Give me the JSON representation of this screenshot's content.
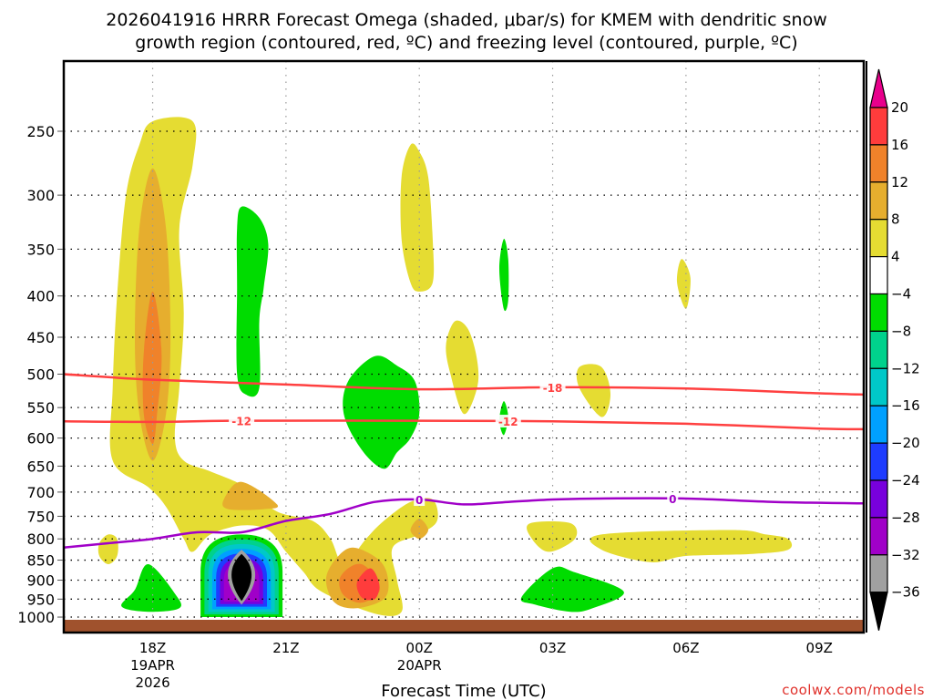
{
  "chart_data": {
    "type": "heatmap",
    "title": "2026041916 HRRR Forecast Omega (shaded, μbar/s) for KMEM with dendritic snow",
    "title_line2": "growth region (contoured, red, ºC) and freezing level (contoured, purple, ºC)",
    "xlabel": "Forecast Time (UTC)",
    "ylabel": "",
    "credit": "coolwx.com/models",
    "x_unit": "hours since 19APR 00Z",
    "xlim": [
      16,
      34
    ],
    "ylim": [
      205,
      1050
    ],
    "y_scale": "log",
    "y_reversed": true,
    "grid": true,
    "y_ticks": [
      250,
      300,
      350,
      400,
      450,
      500,
      550,
      600,
      650,
      700,
      750,
      800,
      850,
      900,
      950,
      1000
    ],
    "x_ticks": [
      {
        "value": 18,
        "label": "18Z",
        "sub1": "19APR",
        "sub2": "2026"
      },
      {
        "value": 21,
        "label": "21Z",
        "sub1": "",
        "sub2": ""
      },
      {
        "value": 24,
        "label": "00Z",
        "sub1": "20APR",
        "sub2": ""
      },
      {
        "value": 27,
        "label": "03Z",
        "sub1": "",
        "sub2": ""
      },
      {
        "value": 30,
        "label": "06Z",
        "sub1": "",
        "sub2": ""
      },
      {
        "value": 33,
        "label": "09Z",
        "sub1": "",
        "sub2": ""
      }
    ],
    "colorbar": {
      "label_unit": "μbar/s",
      "levels": [
        20,
        16,
        12,
        8,
        4,
        -4,
        -8,
        -12,
        -16,
        -20,
        -24,
        -28,
        -32,
        -36
      ],
      "colors": {
        "above_20": "#e8008c",
        "16_20": "#ff3c3c",
        "12_16": "#f0822a",
        "8_12": "#e6ae2e",
        "4_8": "#e5dc32",
        "-4_4": "#ffffff",
        "-8_-4": "#00dc00",
        "-12_-8": "#00d28c",
        "-16_-12": "#00c8c8",
        "-20_-16": "#00a0ff",
        "-24_-20": "#1e3cff",
        "-28_-24": "#7800dc",
        "-32_-28": "#a000c8",
        "-36_-32": "#a0a0a0",
        "below_-36": "#000000"
      }
    },
    "ground_color": "#a0522d",
    "omega_regions": [
      {
        "level": "4_8",
        "points": [
          [
            18.0,
            243
          ],
          [
            18.9,
            243
          ],
          [
            18.9,
            275
          ],
          [
            18.6,
            330
          ],
          [
            18.7,
            420
          ],
          [
            18.6,
            520
          ],
          [
            18.5,
            600
          ],
          [
            18.7,
            640
          ],
          [
            19.3,
            660
          ],
          [
            20.1,
            690
          ],
          [
            20.8,
            740
          ],
          [
            21.6,
            760
          ],
          [
            22.0,
            800
          ],
          [
            22.3,
            860
          ],
          [
            22.8,
            800
          ],
          [
            23.2,
            760
          ],
          [
            23.8,
            720
          ],
          [
            24.3,
            715
          ],
          [
            24.4,
            760
          ],
          [
            24.0,
            790
          ],
          [
            23.4,
            820
          ],
          [
            23.5,
            900
          ],
          [
            23.6,
            985
          ],
          [
            23.0,
            990
          ],
          [
            21.8,
            930
          ],
          [
            21.4,
            880
          ],
          [
            21.0,
            830
          ],
          [
            20.6,
            780
          ],
          [
            20.0,
            770
          ],
          [
            19.3,
            790
          ],
          [
            18.9,
            830
          ],
          [
            18.7,
            800
          ],
          [
            18.3,
            730
          ],
          [
            17.9,
            690
          ],
          [
            17.1,
            640
          ],
          [
            17.1,
            520
          ],
          [
            17.2,
            400
          ],
          [
            17.4,
            300
          ],
          [
            17.7,
            260
          ]
        ]
      },
      {
        "level": "4_8",
        "points": [
          [
            17.0,
            790
          ],
          [
            17.2,
            800
          ],
          [
            17.2,
            840
          ],
          [
            17.0,
            860
          ],
          [
            16.8,
            840
          ],
          [
            16.8,
            810
          ]
        ]
      },
      {
        "level": "8_12",
        "points": [
          [
            18.0,
            278
          ],
          [
            18.3,
            330
          ],
          [
            18.4,
            450
          ],
          [
            18.3,
            560
          ],
          [
            18.0,
            640
          ],
          [
            17.7,
            560
          ],
          [
            17.6,
            450
          ],
          [
            17.7,
            330
          ]
        ]
      },
      {
        "level": "8_12",
        "points": [
          [
            20.0,
            680
          ],
          [
            20.8,
            725
          ],
          [
            20.5,
            735
          ],
          [
            19.7,
            735
          ],
          [
            19.6,
            715
          ]
        ]
      },
      {
        "level": "8_12",
        "points": [
          [
            22.5,
            820
          ],
          [
            23.1,
            850
          ],
          [
            23.3,
            900
          ],
          [
            23.2,
            950
          ],
          [
            22.6,
            975
          ],
          [
            22.1,
            960
          ],
          [
            21.9,
            900
          ],
          [
            22.1,
            850
          ]
        ]
      },
      {
        "level": "8_12",
        "points": [
          [
            24.0,
            755
          ],
          [
            24.2,
            780
          ],
          [
            24.0,
            800
          ],
          [
            23.8,
            780
          ]
        ]
      },
      {
        "level": "12_16",
        "points": [
          [
            18.0,
            395
          ],
          [
            18.2,
            470
          ],
          [
            18.1,
            560
          ],
          [
            18.0,
            610
          ],
          [
            17.8,
            560
          ],
          [
            17.8,
            470
          ]
        ]
      },
      {
        "level": "12_16",
        "points": [
          [
            22.7,
            860
          ],
          [
            23.0,
            890
          ],
          [
            23.1,
            930
          ],
          [
            22.7,
            960
          ],
          [
            22.3,
            940
          ],
          [
            22.2,
            900
          ],
          [
            22.4,
            870
          ]
        ]
      },
      {
        "level": "16_20",
        "points": [
          [
            22.9,
            870
          ],
          [
            23.1,
            910
          ],
          [
            23.0,
            950
          ],
          [
            22.7,
            945
          ],
          [
            22.6,
            905
          ]
        ]
      },
      {
        "level": "4_8",
        "points": [
          [
            23.8,
            260
          ],
          [
            24.0,
            265
          ],
          [
            24.2,
            285
          ],
          [
            24.3,
            340
          ],
          [
            24.3,
            385
          ],
          [
            24.0,
            395
          ],
          [
            23.8,
            385
          ],
          [
            23.6,
            340
          ],
          [
            23.6,
            285
          ]
        ]
      },
      {
        "level": "4_8",
        "points": [
          [
            24.8,
            430
          ],
          [
            25.1,
            440
          ],
          [
            25.3,
            480
          ],
          [
            25.3,
            520
          ],
          [
            25.0,
            560
          ],
          [
            24.7,
            500
          ],
          [
            24.6,
            460
          ]
        ]
      },
      {
        "level": "4_8",
        "points": [
          [
            27.6,
            490
          ],
          [
            28.1,
            490
          ],
          [
            28.3,
            530
          ],
          [
            28.1,
            565
          ],
          [
            27.6,
            520
          ]
        ]
      },
      {
        "level": "4_8",
        "points": [
          [
            26.5,
            765
          ],
          [
            27.4,
            765
          ],
          [
            27.5,
            800
          ],
          [
            26.9,
            830
          ],
          [
            26.5,
            795
          ]
        ]
      },
      {
        "level": "4_8",
        "points": [
          [
            29.9,
            360
          ],
          [
            30.1,
            380
          ],
          [
            30.0,
            415
          ],
          [
            29.8,
            385
          ]
        ]
      },
      {
        "level": "4_8",
        "points": [
          [
            28.1,
            790
          ],
          [
            31.0,
            780
          ],
          [
            31.8,
            790
          ],
          [
            32.3,
            800
          ],
          [
            32.3,
            825
          ],
          [
            31.5,
            835
          ],
          [
            30.0,
            840
          ],
          [
            29.2,
            855
          ],
          [
            28.1,
            825
          ]
        ]
      },
      {
        "level": "-8_-4",
        "points": [
          [
            20.0,
            310
          ],
          [
            20.4,
            320
          ],
          [
            20.6,
            345
          ],
          [
            20.5,
            390
          ],
          [
            20.4,
            430
          ],
          [
            20.4,
            520
          ],
          [
            20.1,
            530
          ],
          [
            19.9,
            500
          ],
          [
            19.9,
            390
          ],
          [
            19.9,
            330
          ]
        ]
      },
      {
        "level": "-8_-4",
        "points": [
          [
            23.0,
            475
          ],
          [
            23.5,
            488
          ],
          [
            23.9,
            510
          ],
          [
            24.0,
            560
          ],
          [
            23.8,
            600
          ],
          [
            23.5,
            625
          ],
          [
            23.2,
            655
          ],
          [
            22.7,
            620
          ],
          [
            22.3,
            560
          ],
          [
            22.4,
            510
          ]
        ]
      },
      {
        "level": "-8_-4",
        "points": [
          [
            25.9,
            340
          ],
          [
            26.0,
            360
          ],
          [
            26.0,
            405
          ],
          [
            25.9,
            415
          ],
          [
            25.8,
            370
          ]
        ]
      },
      {
        "level": "-8_-4",
        "points": [
          [
            25.9,
            540
          ],
          [
            26.0,
            565
          ],
          [
            25.9,
            595
          ],
          [
            25.8,
            570
          ]
        ]
      },
      {
        "level": "-8_-4",
        "points": [
          [
            17.9,
            860
          ],
          [
            18.5,
            935
          ],
          [
            18.6,
            975
          ],
          [
            17.9,
            985
          ],
          [
            17.3,
            970
          ],
          [
            17.6,
            925
          ]
        ]
      },
      {
        "level": "-8_-4",
        "points": [
          [
            27.0,
            870
          ],
          [
            27.5,
            880
          ],
          [
            28.6,
            930
          ],
          [
            27.9,
            975
          ],
          [
            27.4,
            985
          ],
          [
            26.6,
            965
          ],
          [
            26.3,
            945
          ]
        ]
      }
    ],
    "downdraft_core": {
      "center_time": 20.0,
      "center_pressure": 880,
      "rings": [
        "-8_-4",
        "-12_-8",
        "-16_-12",
        "-20_-16",
        "-24_-20",
        "-28_-24",
        "-32_-28",
        "-36_-32",
        "below_-36"
      ]
    },
    "contours": [
      {
        "name": "dgz-minus-18",
        "color": "#ff4040",
        "value": -18,
        "label": "-18",
        "label_time": 27.0,
        "points": [
          [
            16,
            500
          ],
          [
            18,
            508
          ],
          [
            21,
            515
          ],
          [
            24,
            522
          ],
          [
            27,
            519
          ],
          [
            30,
            521
          ],
          [
            33,
            528
          ],
          [
            34,
            530
          ]
        ]
      },
      {
        "name": "dgz-minus-12",
        "color": "#ff4040",
        "value": -12,
        "label": "-12",
        "label_time": 20.0,
        "points": [
          [
            16,
            572
          ],
          [
            18,
            573
          ],
          [
            20,
            571
          ],
          [
            24,
            571
          ],
          [
            27,
            572
          ],
          [
            30,
            576
          ],
          [
            33,
            584
          ],
          [
            34,
            585
          ]
        ]
      },
      {
        "name": "dgz-minus-12-label2",
        "color": "#ff4040",
        "value": -12,
        "label": "-12",
        "label_time": 26.0,
        "points": []
      },
      {
        "name": "freezing-level",
        "color": "#a000c8",
        "value": 0,
        "label": "0",
        "label_time": 24.0,
        "points": [
          [
            16,
            820
          ],
          [
            17,
            810
          ],
          [
            18,
            800
          ],
          [
            19,
            785
          ],
          [
            20,
            785
          ],
          [
            21,
            760
          ],
          [
            22,
            745
          ],
          [
            23,
            720
          ],
          [
            24,
            715
          ],
          [
            25,
            725
          ],
          [
            26,
            720
          ],
          [
            27,
            715
          ],
          [
            28,
            713
          ],
          [
            30,
            713
          ],
          [
            32,
            720
          ],
          [
            34,
            723
          ]
        ]
      },
      {
        "name": "freezing-level-label2",
        "color": "#a000c8",
        "value": 0,
        "label": "0",
        "label_time": 29.7,
        "points": []
      }
    ]
  }
}
